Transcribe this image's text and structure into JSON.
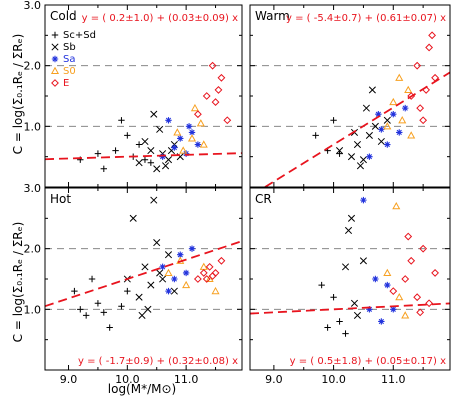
{
  "chart_data": {
    "type": "scatter",
    "xlabel": "log(M*/M⊙)",
    "ylabel": "C = log(Σ₀.₁Rₑ / ΣRₑ)",
    "xlim": [
      8.6,
      11.95
    ],
    "ylim": [
      0.0,
      3.0
    ],
    "x_ticks": [
      "9.0",
      "10.0",
      "11.0"
    ],
    "y_ticks": [
      "1.0",
      "2.0",
      "3.0"
    ],
    "dashed_reference_y": [
      1.0,
      2.0
    ],
    "legend": {
      "location": "top-left of Cold panel",
      "entries": [
        {
          "marker": "+",
          "label": "Sc+Sd",
          "color": "#000000"
        },
        {
          "marker": "×",
          "label": "Sb",
          "color": "#000000"
        },
        {
          "marker": "*",
          "label": "Sa",
          "color": "#2233dd"
        },
        {
          "marker": "△",
          "label": "S0",
          "color": "#f7a020"
        },
        {
          "marker": "◇",
          "label": "E",
          "color": "#e8141e"
        }
      ]
    },
    "colors": {
      "Sc+Sd": "#000000",
      "Sb": "#000000",
      "Sa": "#2233dd",
      "S0": "#f7a020",
      "E": "#e8141e",
      "fit": "#e8141e",
      "ref": "#777777"
    },
    "panels": [
      {
        "name": "Cold",
        "fit_text": "y = ( 0.2±1.0) + (0.03±0.09) x",
        "fit_text_position": "top",
        "fit": {
          "intercept": 0.2,
          "slope": 0.03
        },
        "points": {
          "Sc+Sd": [
            [
              9.2,
              0.45
            ],
            [
              9.5,
              0.55
            ],
            [
              9.8,
              0.6
            ],
            [
              10.0,
              0.85
            ],
            [
              10.1,
              0.5
            ],
            [
              10.3,
              0.45
            ],
            [
              9.6,
              0.3
            ],
            [
              10.2,
              0.7
            ],
            [
              10.4,
              0.4
            ],
            [
              9.9,
              1.1
            ]
          ],
          "Sb": [
            [
              10.2,
              0.4
            ],
            [
              10.4,
              0.6
            ],
            [
              10.5,
              0.3
            ],
            [
              10.6,
              0.55
            ],
            [
              10.7,
              0.45
            ],
            [
              10.8,
              0.7
            ],
            [
              10.9,
              0.5
            ],
            [
              10.3,
              0.75
            ],
            [
              10.55,
              0.95
            ],
            [
              10.65,
              0.35
            ],
            [
              10.45,
              1.2
            ],
            [
              10.75,
              0.6
            ]
          ],
          "Sa": [
            [
              10.6,
              0.5
            ],
            [
              10.8,
              0.65
            ],
            [
              10.9,
              0.8
            ],
            [
              11.0,
              0.55
            ],
            [
              11.1,
              0.9
            ],
            [
              11.2,
              0.7
            ],
            [
              10.7,
              1.1
            ],
            [
              11.05,
              1.0
            ]
          ],
          "S0": [
            [
              10.95,
              0.6
            ],
            [
              11.1,
              0.8
            ],
            [
              11.25,
              1.05
            ],
            [
              11.3,
              0.7
            ],
            [
              10.85,
              0.9
            ],
            [
              11.15,
              1.3
            ]
          ],
          "E": [
            [
              11.2,
              1.2
            ],
            [
              11.35,
              1.5
            ],
            [
              11.5,
              1.4
            ],
            [
              11.6,
              1.8
            ],
            [
              11.45,
              2.0
            ],
            [
              11.7,
              1.1
            ],
            [
              11.55,
              1.6
            ]
          ]
        }
      },
      {
        "name": "Warm",
        "fit_text": "y = ( -5.4±0.7) + (0.61±0.07) x",
        "fit_text_position": "top",
        "fit": {
          "intercept": -5.4,
          "slope": 0.61
        },
        "points": {
          "Sc+Sd": [
            [
              9.7,
              0.85
            ],
            [
              10.1,
              0.55
            ],
            [
              10.0,
              1.1
            ],
            [
              9.9,
              0.6
            ]
          ],
          "Sb": [
            [
              10.1,
              0.6
            ],
            [
              10.3,
              0.5
            ],
            [
              10.4,
              0.7
            ],
            [
              10.5,
              0.45
            ],
            [
              10.6,
              0.85
            ],
            [
              10.7,
              1.0
            ],
            [
              10.8,
              0.75
            ],
            [
              10.9,
              1.1
            ],
            [
              10.55,
              1.3
            ],
            [
              10.35,
              0.9
            ],
            [
              10.65,
              1.6
            ],
            [
              10.45,
              0.35
            ]
          ],
          "Sa": [
            [
              10.6,
              0.5
            ],
            [
              10.8,
              0.95
            ],
            [
              10.9,
              0.7
            ],
            [
              11.0,
              1.2
            ],
            [
              11.1,
              0.9
            ],
            [
              11.2,
              1.3
            ],
            [
              10.75,
              1.2
            ]
          ],
          "S0": [
            [
              10.9,
              1.0
            ],
            [
              11.0,
              1.4
            ],
            [
              11.15,
              1.1
            ],
            [
              11.25,
              1.6
            ],
            [
              11.3,
              0.85
            ],
            [
              11.1,
              1.8
            ]
          ],
          "E": [
            [
              11.3,
              1.5
            ],
            [
              11.4,
              2.0
            ],
            [
              11.5,
              1.1
            ],
            [
              11.6,
              2.3
            ],
            [
              11.7,
              1.8
            ],
            [
              11.45,
              1.3
            ],
            [
              11.65,
              2.5
            ],
            [
              11.55,
              1.6
            ]
          ]
        }
      },
      {
        "name": "Hot",
        "fit_text": "y = ( -1.7±0.9) + (0.32±0.08) x",
        "fit_text_position": "bottom",
        "fit": {
          "intercept": -1.7,
          "slope": 0.32
        },
        "points": {
          "Sc+Sd": [
            [
              9.1,
              1.3
            ],
            [
              9.3,
              0.9
            ],
            [
              9.5,
              1.1
            ],
            [
              9.7,
              0.7
            ],
            [
              9.4,
              1.5
            ],
            [
              9.9,
              1.05
            ],
            [
              10.0,
              1.3
            ],
            [
              9.6,
              0.95
            ],
            [
              9.2,
              1.0
            ]
          ],
          "Sb": [
            [
              10.0,
              1.5
            ],
            [
              10.2,
              1.2
            ],
            [
              10.3,
              1.7
            ],
            [
              10.4,
              1.4
            ],
            [
              10.5,
              2.1
            ],
            [
              10.6,
              1.5
            ],
            [
              10.7,
              1.9
            ],
            [
              10.8,
              1.3
            ],
            [
              10.1,
              2.5
            ],
            [
              10.45,
              2.8
            ],
            [
              10.35,
              1.0
            ],
            [
              10.55,
              1.6
            ],
            [
              10.25,
              0.9
            ]
          ],
          "Sa": [
            [
              10.6,
              1.7
            ],
            [
              10.8,
              1.5
            ],
            [
              10.9,
              1.9
            ],
            [
              11.0,
              1.6
            ],
            [
              11.1,
              2.0
            ],
            [
              10.7,
              1.3
            ]
          ],
          "S0": [
            [
              10.7,
              1.6
            ],
            [
              10.9,
              1.8
            ],
            [
              11.0,
              1.4
            ],
            [
              11.3,
              1.7
            ],
            [
              11.5,
              1.3
            ],
            [
              11.4,
              1.5
            ]
          ],
          "E": [
            [
              11.2,
              1.5
            ],
            [
              11.3,
              1.6
            ],
            [
              11.4,
              1.7
            ],
            [
              11.5,
              1.6
            ],
            [
              11.6,
              1.8
            ],
            [
              11.35,
              1.5
            ],
            [
              11.45,
              1.55
            ]
          ]
        }
      },
      {
        "name": "CR",
        "fit_text": "y = ( 0.5±1.8) + (0.05±0.17) x",
        "fit_text_position": "bottom",
        "fit": {
          "intercept": 0.5,
          "slope": 0.05
        },
        "points": {
          "Sc+Sd": [
            [
              9.9,
              0.7
            ],
            [
              10.0,
              1.2
            ],
            [
              10.1,
              0.8
            ],
            [
              10.2,
              0.6
            ],
            [
              9.8,
              1.4
            ]
          ],
          "Sb": [
            [
              10.2,
              1.7
            ],
            [
              10.3,
              2.5
            ],
            [
              10.4,
              0.9
            ],
            [
              10.5,
              1.8
            ],
            [
              10.35,
              1.1
            ],
            [
              10.25,
              2.3
            ]
          ],
          "Sa": [
            [
              10.5,
              2.8
            ],
            [
              10.6,
              1.0
            ],
            [
              10.7,
              1.5
            ],
            [
              10.8,
              0.8
            ],
            [
              10.9,
              1.4
            ],
            [
              11.0,
              1.0
            ]
          ],
          "S0": [
            [
              10.9,
              1.6
            ],
            [
              11.05,
              2.7
            ],
            [
              11.1,
              1.2
            ],
            [
              11.2,
              0.9
            ]
          ],
          "E": [
            [
              11.0,
              1.3
            ],
            [
              11.2,
              1.5
            ],
            [
              11.3,
              1.8
            ],
            [
              11.4,
              1.2
            ],
            [
              11.5,
              2.0
            ],
            [
              11.6,
              1.1
            ],
            [
              11.7,
              1.6
            ],
            [
              11.45,
              0.95
            ],
            [
              11.25,
              2.2
            ]
          ]
        }
      }
    ]
  }
}
